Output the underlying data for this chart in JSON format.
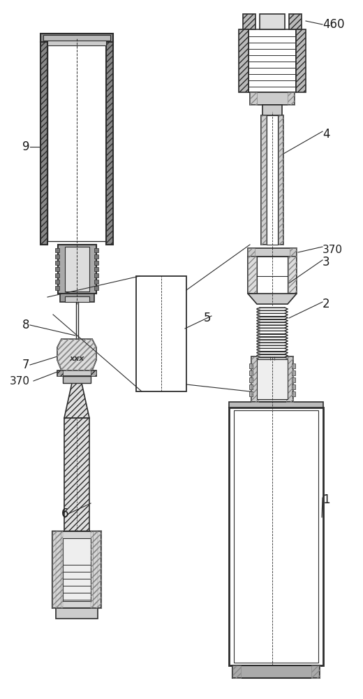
{
  "background_color": "#ffffff",
  "line_color": "#2c2c2c",
  "fig_width": 5.2,
  "fig_height": 10.0,
  "dpi": 100
}
